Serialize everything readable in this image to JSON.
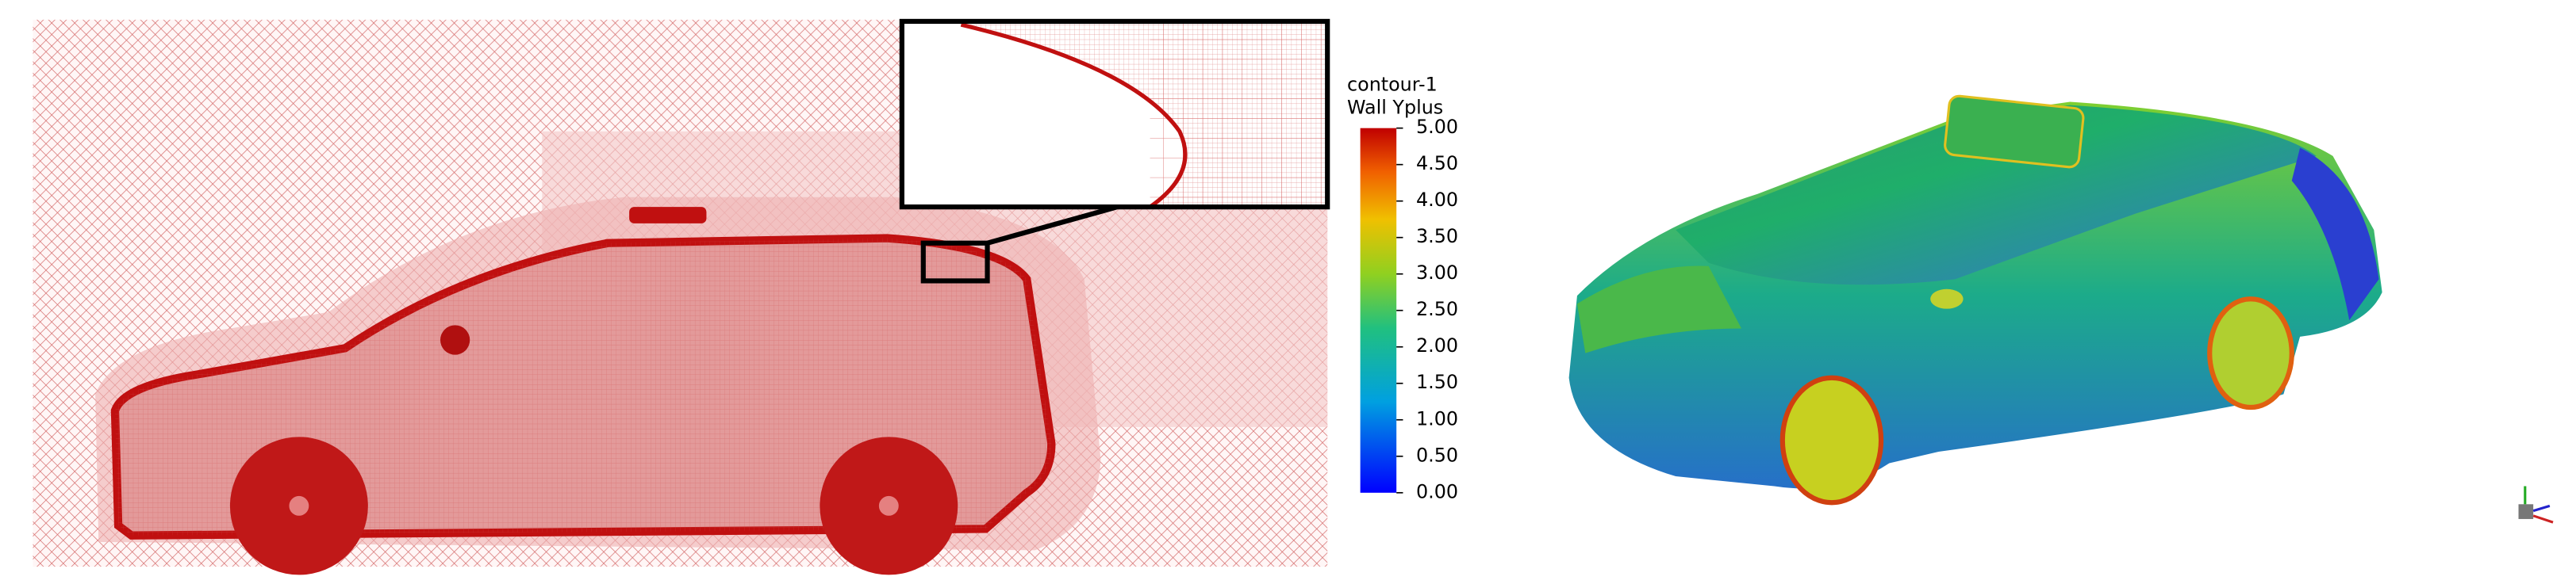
{
  "colorbar": {
    "title": [
      "contour-1",
      "Wall Yplus"
    ],
    "ticks": [
      "5.00",
      "4.50",
      "4.00",
      "3.50",
      "3.00",
      "2.50",
      "2.00",
      "1.50",
      "1.00",
      "0.50",
      "0.00"
    ]
  }
}
